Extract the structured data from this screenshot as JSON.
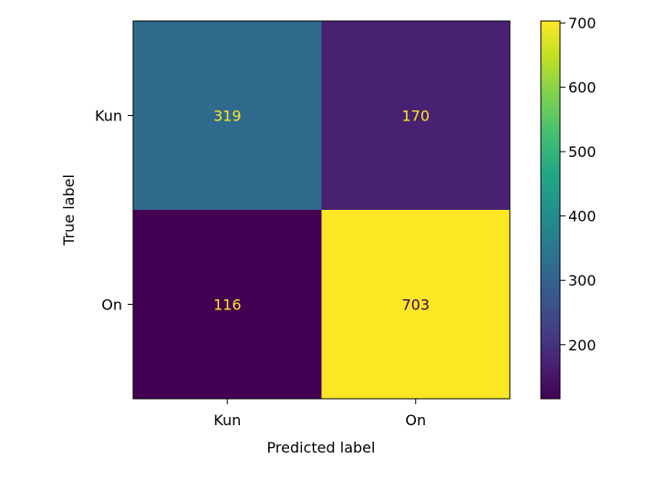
{
  "chart_data": {
    "type": "heatmap",
    "title": "",
    "xlabel": "Predicted label",
    "ylabel": "True label",
    "x_categories": [
      "Kun",
      "On"
    ],
    "y_categories": [
      "Kun",
      "On"
    ],
    "values": [
      [
        319,
        170
      ],
      [
        116,
        703
      ]
    ],
    "colormap": "viridis",
    "colorbar": {
      "range": [
        116,
        703
      ],
      "ticks": [
        200,
        300,
        400,
        500,
        600,
        700
      ]
    },
    "colors": {
      "low_cell_text": "#fde725",
      "high_cell_text": "#440154"
    }
  }
}
